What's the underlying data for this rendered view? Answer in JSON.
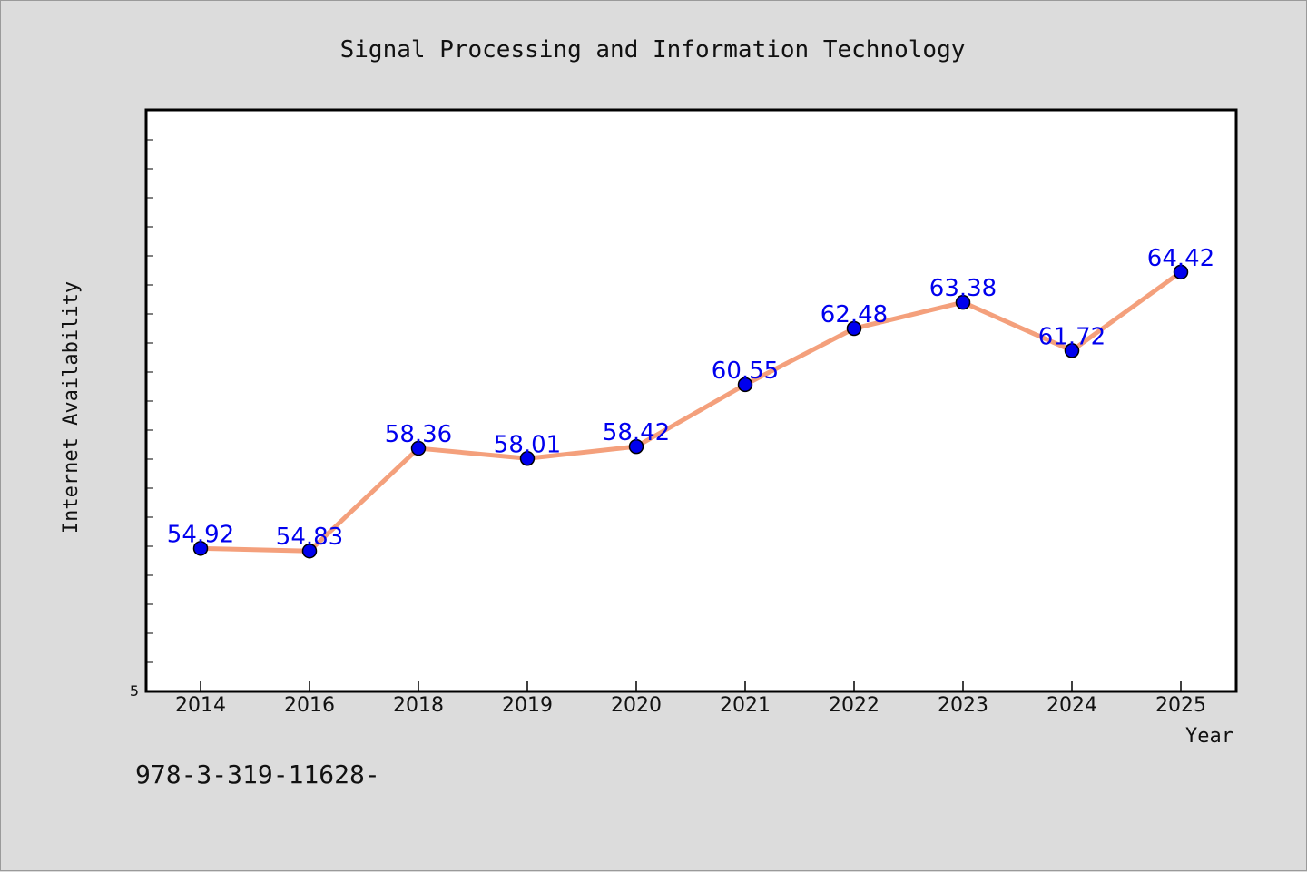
{
  "chart_data": {
    "type": "line",
    "title": "Signal Processing and Information Technology",
    "xlabel": "Year",
    "ylabel": "Internet Availability",
    "categories": [
      "2014",
      "2016",
      "2018",
      "2019",
      "2020",
      "2021",
      "2022",
      "2023",
      "2024",
      "2025"
    ],
    "series": [
      {
        "values": [
          54.92,
          54.83,
          58.36,
          58.01,
          58.42,
          60.55,
          62.48,
          63.38,
          61.72,
          64.42
        ],
        "labels": [
          "54.92",
          "54.83",
          "58.36",
          "58.01",
          "58.42",
          "60.55",
          "62.48",
          "63.38",
          "61.72",
          "64.42"
        ],
        "line_color": "#f4a07c",
        "marker_color": "#0000ee",
        "label_color": "#0000ee"
      }
    ],
    "ylim": [
      50,
      70
    ],
    "y_tick_labels": [
      "5"
    ],
    "grid": false,
    "legend": "none"
  },
  "footnote": "978-3-319-11628-",
  "colors": {
    "background": "#dcdcdc",
    "plot_background": "#ffffff",
    "axis": "#000000"
  }
}
